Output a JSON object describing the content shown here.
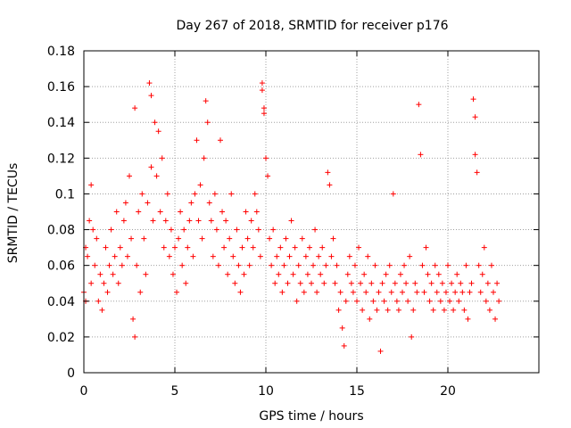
{
  "chart_data": {
    "type": "scatter",
    "title": "Day 267 of 2018, SRMTID for receiver p176",
    "xlabel": "GPS time / hours",
    "ylabel": "SRMTID / TECUs",
    "xlim": [
      0,
      25
    ],
    "ylim": [
      0,
      0.18
    ],
    "x_ticks": [
      0,
      5,
      10,
      15,
      20
    ],
    "x_tick_labels": [
      "0",
      "5",
      "10",
      "15",
      "20"
    ],
    "y_ticks": [
      0,
      0.02,
      0.04,
      0.06,
      0.08,
      0.1,
      0.12,
      0.14,
      0.16,
      0.18
    ],
    "y_tick_labels": [
      "0",
      "0.02",
      "0.04",
      "0.06",
      "0.08",
      "0.1",
      "0.12",
      "0.14",
      "0.16",
      "0.18"
    ],
    "grid": true,
    "marker": "+",
    "color": "#ff0000",
    "series": [
      {
        "name": "SRMTID",
        "x": [
          0.0,
          0.1,
          0.1,
          0.2,
          0.3,
          0.4,
          0.4,
          0.5,
          0.6,
          0.7,
          0.8,
          0.9,
          1.0,
          1.1,
          1.2,
          1.3,
          1.4,
          1.5,
          1.6,
          1.7,
          1.8,
          1.9,
          2.0,
          2.1,
          2.2,
          2.3,
          2.4,
          2.5,
          2.6,
          2.7,
          2.8,
          2.8,
          2.9,
          3.0,
          3.1,
          3.2,
          3.3,
          3.4,
          3.5,
          3.6,
          3.7,
          3.7,
          3.8,
          3.9,
          4.0,
          4.1,
          4.2,
          4.3,
          4.4,
          4.5,
          4.6,
          4.7,
          4.8,
          4.9,
          5.0,
          5.1,
          5.2,
          5.3,
          5.4,
          5.5,
          5.6,
          5.7,
          5.8,
          5.9,
          6.0,
          6.1,
          6.2,
          6.3,
          6.4,
          6.5,
          6.6,
          6.7,
          6.8,
          6.9,
          7.0,
          7.1,
          7.2,
          7.3,
          7.4,
          7.5,
          7.6,
          7.7,
          7.8,
          7.9,
          8.0,
          8.1,
          8.2,
          8.3,
          8.4,
          8.5,
          8.6,
          8.7,
          8.8,
          8.9,
          9.0,
          9.1,
          9.2,
          9.3,
          9.4,
          9.5,
          9.6,
          9.7,
          9.8,
          9.8,
          9.9,
          9.9,
          10.0,
          10.1,
          10.2,
          10.3,
          10.4,
          10.5,
          10.6,
          10.7,
          10.8,
          10.9,
          11.0,
          11.1,
          11.2,
          11.3,
          11.4,
          11.5,
          11.6,
          11.7,
          11.8,
          11.9,
          12.0,
          12.1,
          12.2,
          12.3,
          12.4,
          12.5,
          12.6,
          12.7,
          12.8,
          12.9,
          13.0,
          13.1,
          13.2,
          13.3,
          13.4,
          13.5,
          13.6,
          13.7,
          13.8,
          13.9,
          14.0,
          14.1,
          14.2,
          14.3,
          14.4,
          14.5,
          14.6,
          14.7,
          14.8,
          14.9,
          15.0,
          15.1,
          15.2,
          15.3,
          15.4,
          15.5,
          15.6,
          15.7,
          15.8,
          15.9,
          16.0,
          16.1,
          16.2,
          16.3,
          16.4,
          16.5,
          16.6,
          16.7,
          16.8,
          16.9,
          17.0,
          17.1,
          17.2,
          17.3,
          17.4,
          17.5,
          17.6,
          17.7,
          17.8,
          17.9,
          18.0,
          18.1,
          18.2,
          18.3,
          18.4,
          18.5,
          18.6,
          18.7,
          18.8,
          18.9,
          19.0,
          19.1,
          19.2,
          19.3,
          19.4,
          19.5,
          19.6,
          19.7,
          19.8,
          19.9,
          20.0,
          20.1,
          20.2,
          20.3,
          20.4,
          20.5,
          20.6,
          20.7,
          20.8,
          20.9,
          21.0,
          21.1,
          21.2,
          21.3,
          21.4,
          21.5,
          21.5,
          21.6,
          21.7,
          21.8,
          21.9,
          22.0,
          22.1,
          22.2,
          22.3,
          22.4,
          22.5,
          22.6,
          22.7,
          22.8
        ],
        "y": [
          0.045,
          0.07,
          0.04,
          0.065,
          0.085,
          0.105,
          0.05,
          0.08,
          0.06,
          0.075,
          0.04,
          0.055,
          0.035,
          0.05,
          0.07,
          0.045,
          0.06,
          0.08,
          0.055,
          0.065,
          0.09,
          0.05,
          0.07,
          0.06,
          0.085,
          0.095,
          0.065,
          0.11,
          0.075,
          0.03,
          0.148,
          0.02,
          0.06,
          0.09,
          0.045,
          0.1,
          0.075,
          0.055,
          0.095,
          0.162,
          0.155,
          0.115,
          0.085,
          0.14,
          0.11,
          0.135,
          0.09,
          0.12,
          0.07,
          0.085,
          0.1,
          0.065,
          0.08,
          0.055,
          0.07,
          0.045,
          0.075,
          0.09,
          0.06,
          0.08,
          0.05,
          0.07,
          0.085,
          0.095,
          0.065,
          0.1,
          0.13,
          0.085,
          0.105,
          0.075,
          0.12,
          0.152,
          0.14,
          0.095,
          0.085,
          0.065,
          0.1,
          0.08,
          0.06,
          0.13,
          0.09,
          0.07,
          0.085,
          0.055,
          0.075,
          0.1,
          0.065,
          0.05,
          0.08,
          0.06,
          0.045,
          0.07,
          0.055,
          0.09,
          0.075,
          0.06,
          0.085,
          0.07,
          0.1,
          0.09,
          0.08,
          0.065,
          0.162,
          0.158,
          0.148,
          0.145,
          0.12,
          0.11,
          0.075,
          0.06,
          0.08,
          0.05,
          0.065,
          0.055,
          0.07,
          0.045,
          0.06,
          0.075,
          0.05,
          0.065,
          0.085,
          0.055,
          0.07,
          0.04,
          0.06,
          0.05,
          0.075,
          0.045,
          0.065,
          0.055,
          0.07,
          0.05,
          0.06,
          0.08,
          0.045,
          0.065,
          0.055,
          0.07,
          0.05,
          0.06,
          0.112,
          0.105,
          0.065,
          0.075,
          0.05,
          0.06,
          0.035,
          0.045,
          0.025,
          0.015,
          0.04,
          0.055,
          0.065,
          0.05,
          0.045,
          0.06,
          0.04,
          0.07,
          0.05,
          0.035,
          0.055,
          0.045,
          0.065,
          0.03,
          0.05,
          0.04,
          0.06,
          0.035,
          0.045,
          0.012,
          0.05,
          0.04,
          0.055,
          0.035,
          0.06,
          0.045,
          0.1,
          0.05,
          0.04,
          0.035,
          0.055,
          0.045,
          0.06,
          0.05,
          0.04,
          0.065,
          0.02,
          0.035,
          0.05,
          0.045,
          0.15,
          0.122,
          0.06,
          0.045,
          0.07,
          0.055,
          0.04,
          0.05,
          0.035,
          0.06,
          0.045,
          0.055,
          0.04,
          0.05,
          0.035,
          0.045,
          0.06,
          0.04,
          0.05,
          0.035,
          0.045,
          0.055,
          0.04,
          0.05,
          0.045,
          0.035,
          0.06,
          0.03,
          0.045,
          0.05,
          0.153,
          0.143,
          0.122,
          0.112,
          0.06,
          0.045,
          0.055,
          0.07,
          0.04,
          0.05,
          0.035,
          0.06,
          0.045,
          0.03,
          0.05,
          0.04
        ]
      }
    ]
  }
}
